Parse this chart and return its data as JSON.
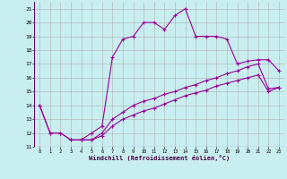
{
  "xlabel": "Windchill (Refroidissement éolien,°C)",
  "bg_color": "#c8eef0",
  "grid_color": "#b0b0b0",
  "line_color": "#990099",
  "x_ticks": [
    0,
    1,
    2,
    3,
    4,
    5,
    6,
    7,
    8,
    9,
    10,
    11,
    12,
    13,
    14,
    15,
    16,
    17,
    18,
    19,
    20,
    21,
    22,
    23
  ],
  "y_ticks": [
    11,
    12,
    13,
    14,
    15,
    16,
    17,
    18,
    19,
    20,
    21
  ],
  "ylim": [
    11,
    21.5
  ],
  "xlim": [
    -0.5,
    23.5
  ],
  "line1_x": [
    0,
    1,
    2,
    3,
    4,
    5,
    6,
    7,
    8,
    9,
    10,
    11,
    12,
    13,
    14,
    15,
    16,
    17,
    18,
    19,
    20,
    21,
    22,
    23
  ],
  "line1_y": [
    14.0,
    12.0,
    12.0,
    11.5,
    11.5,
    12.0,
    12.5,
    17.5,
    18.8,
    19.0,
    20.0,
    20.0,
    19.5,
    20.5,
    21.0,
    19.0,
    19.0,
    19.0,
    18.8,
    17.0,
    17.2,
    17.3,
    17.3,
    16.5
  ],
  "line2_x": [
    0,
    1,
    2,
    3,
    4,
    5,
    6,
    7,
    8,
    9,
    10,
    11,
    12,
    13,
    14,
    15,
    16,
    17,
    18,
    19,
    20,
    21,
    22,
    23
  ],
  "line2_y": [
    14.0,
    12.0,
    12.0,
    11.5,
    11.5,
    11.5,
    12.0,
    13.0,
    13.5,
    14.0,
    14.3,
    14.5,
    14.8,
    15.0,
    15.3,
    15.5,
    15.8,
    16.0,
    16.3,
    16.5,
    16.8,
    17.0,
    15.2,
    15.3
  ],
  "line3_x": [
    4,
    5,
    6,
    7,
    8,
    9,
    10,
    11,
    12,
    13,
    14,
    15,
    16,
    17,
    18,
    19,
    20,
    21,
    22,
    23
  ],
  "line3_y": [
    11.5,
    11.5,
    11.8,
    12.5,
    13.0,
    13.3,
    13.6,
    13.8,
    14.1,
    14.4,
    14.7,
    14.9,
    15.1,
    15.4,
    15.6,
    15.8,
    16.0,
    16.2,
    15.0,
    15.3
  ]
}
